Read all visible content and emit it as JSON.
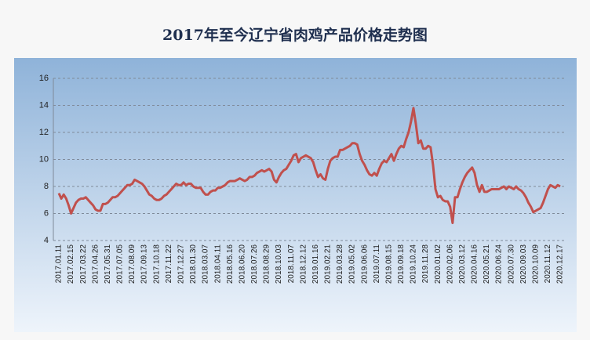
{
  "chart_data": {
    "type": "line",
    "title": "2017年至今辽宁省肉鸡产品价格走势图",
    "categories": [
      "2017.01.11",
      null,
      null,
      null,
      null,
      "2017.02.15",
      null,
      null,
      null,
      null,
      "2017.03.22",
      null,
      null,
      null,
      null,
      "2017.04.26",
      null,
      null,
      null,
      null,
      "2017.05.31",
      null,
      null,
      null,
      null,
      "2017.07.05",
      null,
      null,
      null,
      null,
      "2017.08.09",
      null,
      null,
      null,
      null,
      "2017.09.13",
      null,
      null,
      null,
      null,
      "2017.10.18",
      null,
      null,
      null,
      null,
      "2017.11.22",
      null,
      null,
      null,
      null,
      "2017.12.27",
      null,
      null,
      null,
      null,
      "2018.01.30",
      null,
      null,
      null,
      null,
      "2018.03.07",
      null,
      null,
      null,
      null,
      "2018.04.11",
      null,
      null,
      null,
      null,
      "2018.05.16",
      null,
      null,
      null,
      null,
      "2018.06.20",
      null,
      null,
      null,
      null,
      "2018.07.26",
      null,
      null,
      null,
      null,
      "2018.08.29",
      null,
      null,
      null,
      null,
      "2018.10.03",
      null,
      null,
      null,
      null,
      "2018.11.07",
      null,
      null,
      null,
      null,
      "2018.12.12",
      null,
      null,
      null,
      null,
      "2019.01.16",
      null,
      null,
      null,
      null,
      "2019.02.21",
      null,
      null,
      null,
      null,
      "2019.03.28",
      null,
      null,
      null,
      null,
      "2019.05.02",
      null,
      null,
      null,
      null,
      "2019.06.06",
      null,
      null,
      null,
      null,
      "2019.07.11",
      null,
      null,
      null,
      null,
      "2019.08.15",
      null,
      null,
      null,
      null,
      "2019.09.18",
      null,
      null,
      null,
      null,
      "2019.10.24",
      null,
      null,
      null,
      null,
      "2019.11.28",
      null,
      null,
      null,
      null,
      "2020.01.02",
      null,
      null,
      null,
      null,
      "2020.02.06",
      null,
      null,
      null,
      null,
      "2020.03.12",
      null,
      null,
      null,
      null,
      "2020.04.16",
      null,
      null,
      null,
      null,
      "2020.05.21",
      null,
      null,
      null,
      null,
      "2020.06.24",
      null,
      null,
      null,
      null,
      "2020.07.30",
      null,
      null,
      null,
      null,
      "2020.09.03",
      null,
      null,
      null,
      null,
      "2020.10.09",
      null,
      null,
      null,
      null,
      "2020.11.12",
      null,
      null,
      null,
      null,
      "2020.12.17"
    ],
    "values": [
      7.5,
      7.1,
      7.4,
      7.1,
      6.6,
      6.0,
      6.4,
      6.8,
      7.0,
      7.1,
      7.1,
      7.2,
      7.0,
      6.8,
      6.6,
      6.3,
      6.2,
      6.2,
      6.7,
      6.7,
      6.8,
      7.0,
      7.2,
      7.2,
      7.3,
      7.5,
      7.7,
      7.9,
      8.1,
      8.1,
      8.2,
      8.5,
      8.4,
      8.3,
      8.2,
      8.0,
      7.7,
      7.4,
      7.3,
      7.1,
      7.0,
      7.0,
      7.1,
      7.3,
      7.4,
      7.6,
      7.8,
      8.0,
      8.2,
      8.1,
      8.1,
      8.3,
      8.1,
      8.2,
      8.2,
      8.0,
      7.9,
      7.9,
      7.9,
      7.6,
      7.4,
      7.4,
      7.6,
      7.7,
      7.7,
      7.9,
      7.9,
      8.0,
      8.1,
      8.3,
      8.4,
      8.4,
      8.4,
      8.5,
      8.6,
      8.5,
      8.4,
      8.5,
      8.7,
      8.7,
      8.8,
      9.0,
      9.1,
      9.2,
      9.1,
      9.2,
      9.3,
      9.1,
      8.5,
      8.3,
      8.7,
      9.0,
      9.2,
      9.3,
      9.6,
      9.9,
      10.3,
      10.4,
      9.8,
      10.1,
      10.2,
      10.3,
      10.2,
      10.1,
      9.8,
      9.2,
      8.7,
      8.9,
      8.6,
      8.5,
      9.3,
      9.9,
      10.1,
      10.2,
      10.2,
      10.7,
      10.7,
      10.8,
      10.9,
      11.0,
      11.2,
      11.2,
      11.1,
      10.4,
      9.9,
      9.6,
      9.2,
      8.9,
      8.8,
      9.0,
      8.8,
      9.3,
      9.7,
      9.9,
      9.8,
      10.1,
      10.4,
      9.9,
      10.4,
      10.8,
      11.0,
      10.9,
      11.5,
      12.0,
      12.8,
      13.8,
      12.6,
      11.2,
      11.4,
      10.8,
      10.8,
      11.0,
      10.9,
      9.6,
      7.8,
      7.2,
      7.3,
      7.0,
      6.9,
      6.9,
      6.5,
      5.3,
      7.2,
      7.2,
      7.8,
      8.3,
      8.7,
      9.0,
      9.2,
      9.4,
      9.0,
      8.1,
      7.6,
      8.1,
      7.6,
      7.6,
      7.7,
      7.8,
      7.8,
      7.8,
      7.8,
      7.9,
      8.0,
      7.8,
      8.0,
      7.9,
      7.8,
      8.0,
      7.8,
      7.7,
      7.5,
      7.2,
      6.8,
      6.5,
      6.1,
      6.2,
      6.3,
      6.4,
      6.8,
      7.3,
      7.8,
      8.1,
      8.0,
      7.9,
      8.1,
      8.0
    ],
    "color": "#c0504d",
    "ylim": [
      4,
      16
    ],
    "yticks": [
      4,
      6,
      8,
      10,
      12,
      14,
      16
    ],
    "grid": true
  }
}
